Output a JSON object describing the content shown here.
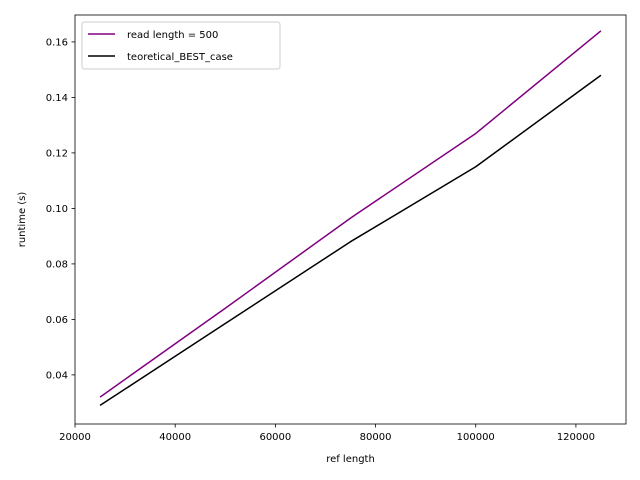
{
  "chart_data": {
    "type": "line",
    "x": [
      25000,
      50000,
      75000,
      100000,
      125000
    ],
    "series": [
      {
        "name": "read length = 500",
        "color": "#800080",
        "values": [
          0.032,
          0.064,
          0.0965,
          0.127,
          0.164
        ]
      },
      {
        "name": "teoretical_BEST_case",
        "color": "#000000",
        "values": [
          0.029,
          0.0585,
          0.088,
          0.115,
          0.148
        ]
      }
    ],
    "xlabel": "ref length",
    "ylabel": "runtime (s)",
    "xlim": [
      20000,
      130000
    ],
    "ylim": [
      0.0223,
      0.1697
    ],
    "xticks": [
      20000,
      40000,
      60000,
      80000,
      100000,
      120000
    ],
    "xtick_labels": [
      "20000",
      "40000",
      "60000",
      "80000",
      "100000",
      "120000"
    ],
    "yticks": [
      0.04,
      0.06,
      0.08,
      0.1,
      0.12,
      0.14,
      0.16
    ],
    "ytick_labels": [
      "0.04",
      "0.06",
      "0.08",
      "0.10",
      "0.12",
      "0.14",
      "0.16"
    ],
    "grid": false,
    "legend_position": "upper-left"
  }
}
